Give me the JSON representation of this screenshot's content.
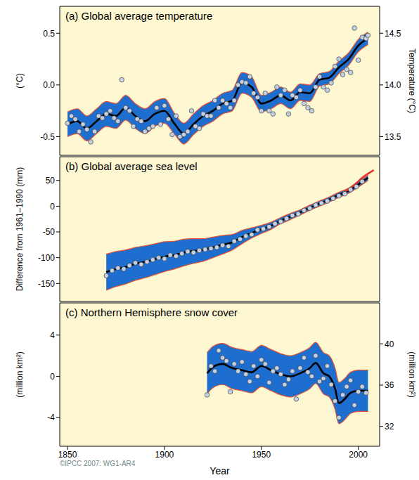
{
  "credit": "©IPCC 2007: WG1-AR4",
  "chart_data": [
    {
      "type": "line",
      "title": "(a) Global average temperature",
      "y_label": "(°C)",
      "y2_label": "Temperature (°C)",
      "background": "#fdf7d2",
      "xlim": [
        1846,
        2011
      ],
      "xticks": [
        1850,
        1900,
        1950,
        2000
      ],
      "tick_labels": "y",
      "ylim": [
        -0.68,
        0.76
      ],
      "yticks": [
        -0.5,
        {
          "value": 0,
          "label": "0.0"
        },
        0.5
      ],
      "y2lim": [
        13.32,
        14.76
      ],
      "y2ticks": [
        13.5,
        {
          "value": 14,
          "label": "14.0"
        },
        14.5
      ],
      "series": [
        {
          "type": "area",
          "color": "#1e6ecf",
          "x": [
            1850,
            1855,
            1860,
            1865,
            1870,
            1875,
            1880,
            1885,
            1890,
            1895,
            1900,
            1905,
            1910,
            1915,
            1920,
            1925,
            1930,
            1935,
            1940,
            1945,
            1950,
            1955,
            1960,
            1965,
            1970,
            1975,
            1980,
            1985,
            1990,
            1995,
            2000,
            2005
          ],
          "lower": [
            -0.5,
            -0.47,
            -0.54,
            -0.47,
            -0.4,
            -0.42,
            -0.34,
            -0.42,
            -0.47,
            -0.4,
            -0.37,
            -0.47,
            -0.57,
            -0.48,
            -0.4,
            -0.35,
            -0.28,
            -0.25,
            -0.08,
            -0.12,
            -0.26,
            -0.23,
            -0.18,
            -0.23,
            -0.15,
            -0.16,
            -0.01,
            0.01,
            0.11,
            0.19,
            0.32,
            0.39
          ],
          "upper": [
            -0.26,
            -0.23,
            -0.3,
            -0.23,
            -0.16,
            -0.18,
            -0.1,
            -0.18,
            -0.23,
            -0.16,
            -0.13,
            -0.27,
            -0.37,
            -0.28,
            -0.2,
            -0.15,
            -0.08,
            -0.05,
            0.12,
            0.08,
            -0.1,
            -0.07,
            -0.02,
            -0.07,
            0.01,
            0.0,
            0.11,
            0.13,
            0.23,
            0.31,
            0.44,
            0.51
          ]
        },
        {
          "type": "scatter",
          "color": "#c4d0e2",
          "marker": "circle",
          "x": [
            1850,
            1852,
            1854,
            1856,
            1858,
            1860,
            1862,
            1864,
            1866,
            1868,
            1870,
            1872,
            1874,
            1876,
            1878,
            1880,
            1882,
            1884,
            1886,
            1888,
            1890,
            1892,
            1894,
            1896,
            1898,
            1900,
            1902,
            1904,
            1906,
            1908,
            1910,
            1912,
            1914,
            1916,
            1918,
            1920,
            1922,
            1924,
            1926,
            1928,
            1930,
            1932,
            1934,
            1936,
            1938,
            1940,
            1942,
            1944,
            1946,
            1948,
            1950,
            1952,
            1954,
            1956,
            1958,
            1960,
            1962,
            1964,
            1966,
            1968,
            1970,
            1972,
            1974,
            1976,
            1978,
            1980,
            1982,
            1984,
            1986,
            1988,
            1990,
            1992,
            1994,
            1996,
            1998,
            2000,
            2002,
            2004,
            2005
          ],
          "values": [
            -0.37,
            -0.3,
            -0.33,
            -0.45,
            -0.38,
            -0.43,
            -0.55,
            -0.45,
            -0.3,
            -0.32,
            -0.28,
            -0.25,
            -0.32,
            -0.35,
            0.05,
            -0.22,
            -0.25,
            -0.4,
            -0.33,
            -0.35,
            -0.45,
            -0.42,
            -0.4,
            -0.22,
            -0.38,
            -0.2,
            -0.33,
            -0.48,
            -0.3,
            -0.5,
            -0.48,
            -0.45,
            -0.25,
            -0.4,
            -0.42,
            -0.28,
            -0.3,
            -0.3,
            -0.15,
            -0.22,
            -0.15,
            -0.18,
            -0.22,
            -0.15,
            0.0,
            0.03,
            0.02,
            0.08,
            -0.08,
            -0.12,
            -0.25,
            -0.08,
            -0.25,
            -0.28,
            -0.02,
            -0.1,
            -0.05,
            -0.28,
            -0.1,
            -0.12,
            -0.05,
            -0.18,
            -0.22,
            -0.25,
            -0.02,
            0.08,
            -0.02,
            -0.05,
            0.02,
            0.18,
            0.25,
            0.1,
            0.15,
            0.12,
            0.55,
            0.24,
            0.46,
            0.45,
            0.48
          ]
        },
        {
          "type": "line",
          "color": "#000000",
          "x": [
            1850,
            1855,
            1860,
            1865,
            1870,
            1875,
            1880,
            1885,
            1890,
            1895,
            1900,
            1905,
            1910,
            1915,
            1920,
            1925,
            1930,
            1935,
            1940,
            1945,
            1950,
            1955,
            1960,
            1965,
            1970,
            1975,
            1980,
            1985,
            1990,
            1995,
            2000,
            2005
          ],
          "values": [
            -0.38,
            -0.35,
            -0.42,
            -0.35,
            -0.28,
            -0.3,
            -0.22,
            -0.3,
            -0.35,
            -0.28,
            -0.25,
            -0.37,
            -0.47,
            -0.38,
            -0.3,
            -0.25,
            -0.18,
            -0.15,
            0.02,
            -0.02,
            -0.18,
            -0.15,
            -0.1,
            -0.15,
            -0.07,
            -0.08,
            0.05,
            0.07,
            0.17,
            0.25,
            0.38,
            0.45
          ]
        }
      ]
    },
    {
      "type": "line",
      "title": "(b) Global average sea level",
      "y_label": "Difference from 1961–1990 (mm)",
      "background": "#fdf7d2",
      "xlim": [
        1846,
        2011
      ],
      "xticks": [
        1850,
        1900,
        1950,
        2000
      ],
      "tick_labels": "y",
      "ylim": [
        -185,
        96
      ],
      "yticks": [
        -150,
        -100,
        -50,
        0,
        50
      ],
      "series": [
        {
          "type": "area",
          "color": "#1e6ecf",
          "x": [
            1870,
            1875,
            1880,
            1885,
            1890,
            1895,
            1900,
            1905,
            1910,
            1915,
            1920,
            1925,
            1930,
            1935,
            1940,
            1945,
            1950,
            1955,
            1960,
            1965,
            1970,
            1975,
            1980,
            1985,
            1990,
            1995,
            2000,
            2005
          ],
          "lower": [
            -163,
            -156,
            -151,
            -144,
            -139,
            -133,
            -127,
            -122,
            -116,
            -111,
            -107,
            -100,
            -93,
            -85,
            -73,
            -62,
            -53,
            -45,
            -34,
            -26,
            -17,
            -8,
            0,
            8,
            17,
            25,
            37,
            50
          ],
          "upper": [
            -93,
            -88,
            -85,
            -80,
            -77,
            -73,
            -69,
            -68,
            -64,
            -63,
            -63,
            -60,
            -57,
            -55,
            -47,
            -42,
            -37,
            -31,
            -22,
            -14,
            -7,
            2,
            10,
            18,
            27,
            35,
            47,
            60
          ]
        },
        {
          "type": "scatter",
          "color": "#c4d0e2",
          "marker": "circle",
          "x": [
            1870,
            1873,
            1876,
            1879,
            1882,
            1885,
            1888,
            1891,
            1894,
            1897,
            1900,
            1903,
            1906,
            1909,
            1912,
            1915,
            1918,
            1921,
            1924,
            1927,
            1930,
            1933,
            1936,
            1939,
            1942,
            1945,
            1948,
            1951,
            1954,
            1957,
            1960,
            1963,
            1966,
            1969,
            1972,
            1975,
            1978,
            1981,
            1984,
            1987,
            1990,
            1993,
            1996,
            1999,
            2002
          ],
          "values": [
            -135,
            -125,
            -120,
            -122,
            -115,
            -110,
            -113,
            -108,
            -104,
            -100,
            -102,
            -95,
            -97,
            -92,
            -88,
            -90,
            -86,
            -84,
            -82,
            -80,
            -76,
            -78,
            -68,
            -64,
            -58,
            -55,
            -46,
            -44,
            -40,
            -34,
            -30,
            -24,
            -18,
            -15,
            -8,
            -4,
            2,
            6,
            10,
            15,
            20,
            24,
            32,
            38,
            48
          ]
        },
        {
          "type": "line",
          "color": "#000000",
          "x": [
            1870,
            1875,
            1880,
            1885,
            1890,
            1895,
            1900,
            1905,
            1910,
            1915,
            1920,
            1925,
            1930,
            1935,
            1940,
            1945,
            1950,
            1955,
            1960,
            1965,
            1970,
            1975,
            1980,
            1985,
            1990,
            1995,
            2000,
            2005
          ],
          "values": [
            -128,
            -122,
            -118,
            -112,
            -108,
            -103,
            -98,
            -95,
            -90,
            -87,
            -85,
            -80,
            -75,
            -70,
            -60,
            -52,
            -45,
            -38,
            -28,
            -20,
            -12,
            -3,
            5,
            13,
            22,
            30,
            42,
            55
          ]
        },
        {
          "type": "line",
          "color": "#e8342a",
          "x": [
            1993,
            1996,
            1999,
            2002,
            2005,
            2008
          ],
          "values": [
            28,
            36,
            45,
            55,
            63,
            70
          ]
        }
      ]
    },
    {
      "type": "line",
      "title": "(c) Northern Hemisphere snow cover",
      "y_label": "(million km²)",
      "y2_label": "(million km²)",
      "x_label": "Year",
      "background": "#fdf7d2",
      "xlim": [
        1846,
        2011
      ],
      "xticks": [
        1850,
        1900,
        1950,
        2000
      ],
      "ylim": [
        -6.78,
        7.12
      ],
      "yticks": [
        -4,
        0,
        4
      ],
      "y2lim": [
        30.07,
        43.97
      ],
      "y2ticks": [
        32,
        36,
        40
      ],
      "series": [
        {
          "type": "area",
          "color": "#1e6ecf",
          "x": [
            1922,
            1925,
            1930,
            1935,
            1940,
            1945,
            1950,
            1955,
            1960,
            1965,
            1970,
            1975,
            1978,
            1982,
            1985,
            1988,
            1990,
            1993,
            1996,
            2000,
            2005
          ],
          "lower": [
            -1.7,
            -1.1,
            -0.8,
            -1.2,
            -1.4,
            -1.6,
            -1.0,
            -1.4,
            -1.8,
            -2.0,
            -1.7,
            -1.2,
            -0.7,
            -1.7,
            -2.0,
            -3.2,
            -4.6,
            -4.2,
            -3.6,
            -3.4,
            -3.4
          ],
          "upper": [
            2.3,
            2.9,
            3.2,
            2.8,
            2.6,
            2.4,
            3.0,
            2.6,
            2.2,
            2.0,
            2.3,
            2.8,
            3.3,
            2.3,
            2.0,
            0.8,
            -0.6,
            -0.2,
            0.4,
            0.6,
            0.6
          ]
        },
        {
          "type": "scatter",
          "color": "#c4d0e2",
          "marker": "circle",
          "x": [
            1922,
            1924,
            1926,
            1928,
            1930,
            1932,
            1934,
            1936,
            1938,
            1940,
            1942,
            1944,
            1946,
            1948,
            1950,
            1952,
            1954,
            1956,
            1958,
            1960,
            1962,
            1964,
            1966,
            1968,
            1970,
            1972,
            1974,
            1976,
            1978,
            1980,
            1982,
            1984,
            1986,
            1988,
            1990,
            1992,
            1994,
            1996,
            1998,
            2000,
            2002,
            2004
          ],
          "values": [
            -1.8,
            1.0,
            0.5,
            2.5,
            1.8,
            1.5,
            -1.5,
            1.2,
            0.5,
            1.4,
            0.2,
            -0.5,
            1.0,
            0.0,
            1.6,
            1.2,
            -0.6,
            0.5,
            0.8,
            0.2,
            -0.8,
            -0.3,
            0.5,
            -2.2,
            0.8,
            1.8,
            0.4,
            0.0,
            2.0,
            -0.5,
            -0.2,
            1.0,
            -0.8,
            -2.4,
            -4.0,
            -1.8,
            -1.0,
            -0.4,
            -2.8,
            -1.5,
            -1.0,
            -1.6
          ]
        },
        {
          "type": "line",
          "color": "#000000",
          "x": [
            1922,
            1925,
            1930,
            1935,
            1940,
            1945,
            1950,
            1955,
            1960,
            1965,
            1970,
            1975,
            1978,
            1982,
            1985,
            1988,
            1990,
            1993,
            1996,
            2000,
            2005
          ],
          "values": [
            0.3,
            0.9,
            1.2,
            0.8,
            0.6,
            0.4,
            1.0,
            0.6,
            0.2,
            0.0,
            0.3,
            0.8,
            1.3,
            0.3,
            0.0,
            -1.2,
            -2.6,
            -2.2,
            -1.6,
            -1.4,
            -1.4
          ]
        }
      ]
    }
  ]
}
